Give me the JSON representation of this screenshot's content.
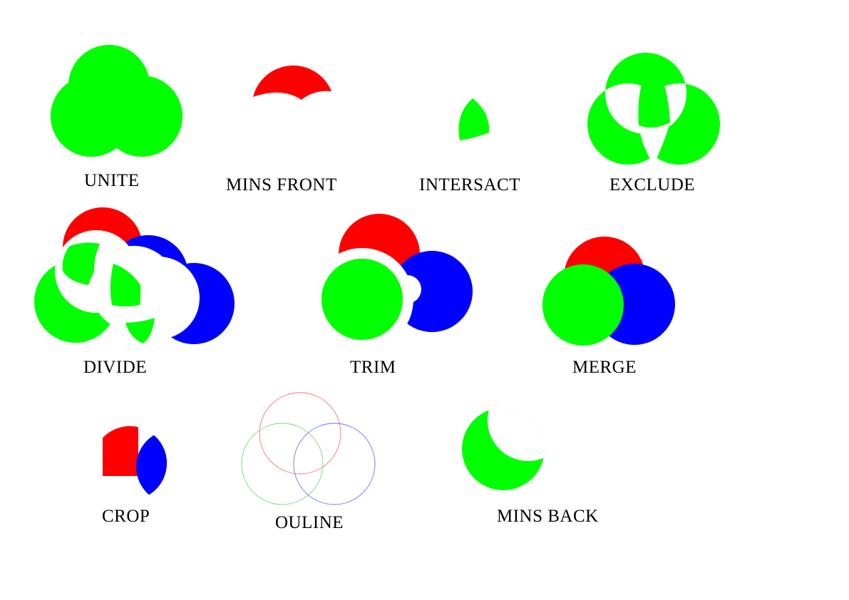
{
  "colors": {
    "red": "#ff0000",
    "green": "#00ff00",
    "blue": "#0000ff",
    "background": "#ffffff",
    "label": "#000000"
  },
  "labels": {
    "unite": "UNITE",
    "minus_front": "MINS FRONT",
    "intersect": "INTERSACT",
    "exclude": "EXCLUDE",
    "divide": "DIVIDE",
    "trim": "TRIM",
    "merge": "MERGE",
    "crop": "CROP",
    "outline": "OULINE",
    "minus_back": "MINS BACK"
  }
}
